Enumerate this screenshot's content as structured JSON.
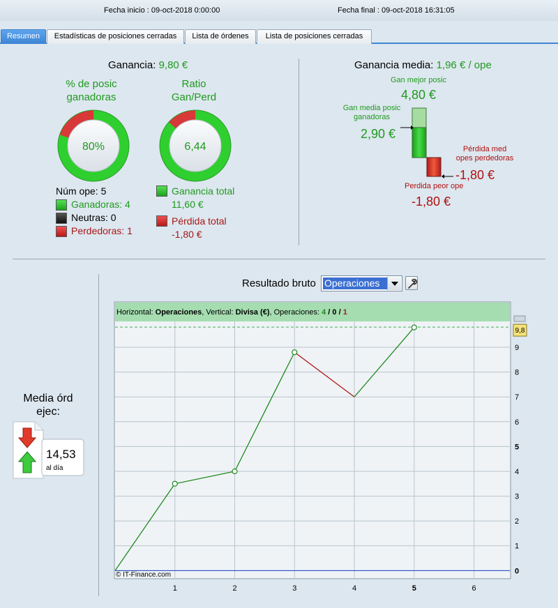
{
  "header": {
    "start_label": "Fecha inicio :",
    "start_value": "09-oct-2018 0:00:00",
    "end_label": "Fecha final :",
    "end_value": "09-oct-2018 16:31:05"
  },
  "tabs": [
    {
      "label": "Resumen",
      "active": true
    },
    {
      "label": "Estadísticas de posiciones cerradas",
      "active": false
    },
    {
      "label": "Lista de órdenes",
      "active": false
    },
    {
      "label": "Lista de posiciones cerradas",
      "active": false
    }
  ],
  "summary": {
    "profit_label": "Ganancia:",
    "profit_value": "9,80 €",
    "winners_title_1": "% de posic",
    "winners_title_2": "ganadoras",
    "winners_value": "80%",
    "winners_fraction": 0.8,
    "ratio_title_1": "Ratio",
    "ratio_title_2": "Gan/Perd",
    "ratio_value": "6,44",
    "ratio_fraction": 0.866,
    "num_ops": "Núm ope: 5",
    "winners": "Ganadoras: 4",
    "neutral": "Neutras: 0",
    "losers": "Perdedoras: 1",
    "total_gain_label": "Ganancia total",
    "total_gain_value": "11,60 €",
    "total_loss_label": "Pérdida total",
    "total_loss_value": "-1,80 €"
  },
  "average": {
    "title_label": "Ganancia media:",
    "title_value": "1,96 € / ope",
    "best_label": "Gan mejor posic",
    "best_value": "4,80 €",
    "avg_win_label_1": "Gan media posic",
    "avg_win_label_2": "ganadoras",
    "avg_win_value": "2,90 €",
    "avg_loss_label_1": "Pérdida med",
    "avg_loss_label_2": "opes perdedoras",
    "avg_loss_value": "-1,80 €",
    "worst_label": "Perdida peor ope",
    "worst_value": "-1,80 €"
  },
  "orders": {
    "title_1": "Media órd",
    "title_2": "ejec:",
    "value": "14,53",
    "unit": "al día"
  },
  "chart_controls": {
    "label": "Resultado bruto",
    "selected": "Operaciones"
  },
  "chart_data": {
    "type": "line",
    "info_prefix": "Horizontal: ",
    "info_h": "Operaciones",
    "info_mid": ", Vertical: ",
    "info_v": "Divisa (€)",
    "info_ops": ", Operaciones: ",
    "info_win": "4",
    "info_sep1": " / ",
    "info_neu": "0",
    "info_sep2": " / ",
    "info_loss": "1",
    "copyright": "© IT-Finance.com",
    "x": [
      0,
      1,
      2,
      3,
      4,
      5
    ],
    "y": [
      0,
      3.5,
      4.0,
      8.8,
      7.0,
      9.8
    ],
    "segment_colors": [
      "#1f8a1f",
      "#1f8a1f",
      "#1f8a1f",
      "#b01818",
      "#1f8a1f"
    ],
    "xlim": [
      0,
      6.6
    ],
    "ylim": [
      -0.3,
      10.8
    ],
    "x_ticks": [
      "1",
      "2",
      "3",
      "4",
      "5",
      "6"
    ],
    "y_ticks": [
      "0",
      "1",
      "2",
      "3",
      "4",
      "5",
      "6",
      "7",
      "8",
      "9"
    ],
    "last_value_label": "9,8",
    "grid": true,
    "colors": {
      "win": "#1f9a1f",
      "loss": "#b01818",
      "zero": "#1a3fc0"
    }
  }
}
